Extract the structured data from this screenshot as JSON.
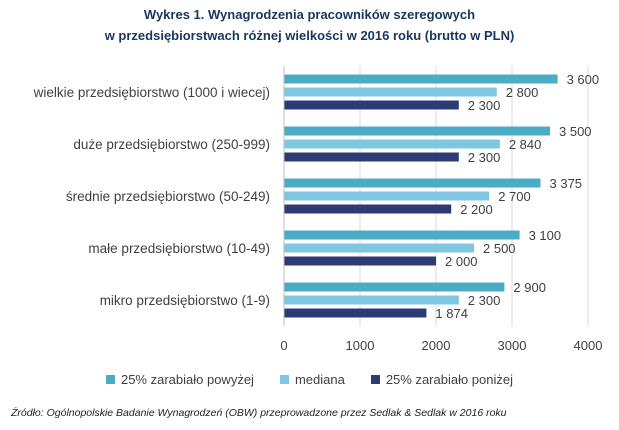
{
  "chart_data": {
    "type": "bar",
    "orientation": "horizontal",
    "title_line1": "Wykres 1. Wynagrodzenia pracowników szeregowych",
    "title_line2": "w przedsiębiorstwach różnej wielkości w 2016 roku (brutto w PLN)",
    "categories": [
      "wielkie przedsiębiorstwo (1000 i wiecej)",
      "duże przedsiębiorstwo (250-999)",
      "średnie przedsiębiorstwo (50-249)",
      "małe przedsiębiorstwo (10-49)",
      "mikro przedsiębiorstwo (1-9)"
    ],
    "series": [
      {
        "name": "25% zarabiało powyżej",
        "color": "#4bacc6",
        "values": [
          3600,
          3500,
          3375,
          3100,
          2900
        ],
        "labels": [
          "3 600",
          "3 500",
          "3 375",
          "3 100",
          "2 900"
        ]
      },
      {
        "name": "mediana",
        "color": "#7fc7e0",
        "values": [
          2800,
          2840,
          2700,
          2500,
          2300
        ],
        "labels": [
          "2 800",
          "2 840",
          "2 700",
          "2 500",
          "2 300"
        ]
      },
      {
        "name": "25% zarabiało poniżej",
        "color": "#2e3a73",
        "values": [
          2300,
          2300,
          2200,
          2000,
          1874
        ],
        "labels": [
          "2 300",
          "2 300",
          "2 200",
          "2 000",
          "1 874"
        ]
      }
    ],
    "x_ticks": [
      0,
      1000,
      2000,
      3000,
      4000
    ],
    "x_tick_labels": [
      "0",
      "1000",
      "2000",
      "3000",
      "4000"
    ],
    "xlim": [
      0,
      4000
    ],
    "grid": true,
    "legend_position": "bottom"
  },
  "source_text": "Źródło: Ogólnopolskie Badanie Wynagrodzeń (OBW) przeprowadzone przez Sedlak & Sedlak w 2016 roku"
}
